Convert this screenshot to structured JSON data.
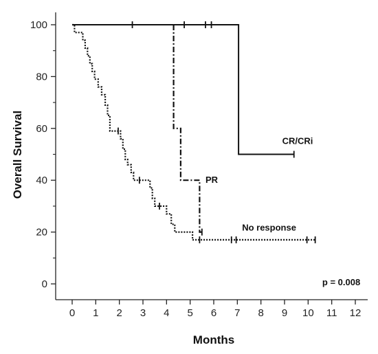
{
  "chart_data": {
    "type": "line",
    "subtype": "kaplan-meier",
    "title": "",
    "xlabel": "Months",
    "ylabel": "Overall Survival",
    "xlim": [
      0,
      12
    ],
    "ylim": [
      0,
      100
    ],
    "xticks": [
      0,
      1,
      2,
      3,
      4,
      5,
      6,
      7,
      8,
      9,
      10,
      11,
      12
    ],
    "yticks": [
      0,
      20,
      40,
      60,
      80,
      100
    ],
    "grid": false,
    "legend": "none",
    "series": [
      {
        "name": "CR/CRi",
        "line_style": "solid",
        "steps": [
          [
            0,
            100
          ],
          [
            7.05,
            100
          ],
          [
            7.05,
            50
          ],
          [
            9.4,
            50
          ]
        ],
        "censored": [
          [
            2.55,
            100
          ],
          [
            4.75,
            100
          ],
          [
            5.65,
            100
          ],
          [
            5.9,
            100
          ],
          [
            9.4,
            50
          ]
        ]
      },
      {
        "name": "PR",
        "line_style": "dash-dot",
        "steps": [
          [
            4.3,
            100
          ],
          [
            4.3,
            60
          ],
          [
            4.6,
            60
          ],
          [
            4.6,
            40
          ],
          [
            5.4,
            40
          ],
          [
            5.4,
            20
          ],
          [
            5.5,
            20
          ]
        ],
        "censored": [
          [
            5.5,
            20
          ]
        ]
      },
      {
        "name": "No response",
        "line_style": "dotted",
        "steps": [
          [
            0,
            100
          ],
          [
            0.1,
            100
          ],
          [
            0.1,
            97
          ],
          [
            0.45,
            97
          ],
          [
            0.45,
            94
          ],
          [
            0.55,
            94
          ],
          [
            0.55,
            91
          ],
          [
            0.65,
            91
          ],
          [
            0.65,
            88
          ],
          [
            0.75,
            88
          ],
          [
            0.75,
            85
          ],
          [
            0.85,
            85
          ],
          [
            0.85,
            82
          ],
          [
            0.95,
            82
          ],
          [
            0.95,
            79
          ],
          [
            1.1,
            79
          ],
          [
            1.1,
            76
          ],
          [
            1.25,
            76
          ],
          [
            1.25,
            73
          ],
          [
            1.4,
            73
          ],
          [
            1.4,
            69
          ],
          [
            1.5,
            69
          ],
          [
            1.5,
            65
          ],
          [
            1.6,
            65
          ],
          [
            1.6,
            59
          ],
          [
            2.05,
            59
          ],
          [
            2.05,
            56
          ],
          [
            2.15,
            56
          ],
          [
            2.15,
            52
          ],
          [
            2.25,
            52
          ],
          [
            2.25,
            48
          ],
          [
            2.35,
            48
          ],
          [
            2.35,
            46
          ],
          [
            2.5,
            46
          ],
          [
            2.5,
            43
          ],
          [
            2.6,
            43
          ],
          [
            2.6,
            40
          ],
          [
            3.3,
            40
          ],
          [
            3.3,
            37
          ],
          [
            3.4,
            37
          ],
          [
            3.4,
            33
          ],
          [
            3.5,
            33
          ],
          [
            3.5,
            30
          ],
          [
            4.0,
            30
          ],
          [
            4.0,
            27
          ],
          [
            4.2,
            27
          ],
          [
            4.2,
            23
          ],
          [
            4.35,
            23
          ],
          [
            4.35,
            20
          ],
          [
            5.1,
            20
          ],
          [
            5.1,
            17
          ],
          [
            10.3,
            17
          ]
        ],
        "censored": [
          [
            1.95,
            59
          ],
          [
            2.85,
            40
          ],
          [
            3.7,
            30
          ],
          [
            5.4,
            17
          ],
          [
            6.75,
            17
          ],
          [
            6.95,
            17
          ],
          [
            9.95,
            17
          ],
          [
            10.3,
            17
          ]
        ]
      }
    ],
    "annotations": [
      {
        "text": "CR/CRi",
        "x": 8.9,
        "y": 54
      },
      {
        "text": "PR",
        "x": 5.65,
        "y": 39
      },
      {
        "text": "No response",
        "x": 7.2,
        "y": 20.5
      },
      {
        "text": "p = 0.008",
        "x": 10.6,
        "y": -0.5
      }
    ]
  }
}
